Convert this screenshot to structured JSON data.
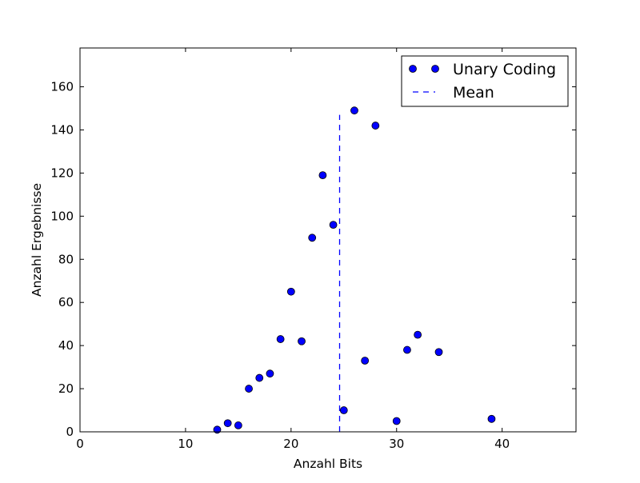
{
  "chart_data": {
    "type": "scatter",
    "xlabel": "Anzahl Bits",
    "ylabel": "Anzahl Ergebnisse",
    "xlim": [
      0,
      47
    ],
    "ylim": [
      0,
      178
    ],
    "xticks": [
      0,
      10,
      20,
      30,
      40
    ],
    "yticks": [
      0,
      20,
      40,
      60,
      80,
      100,
      120,
      140,
      160
    ],
    "grid": false,
    "legend_position": "top-right",
    "series": [
      {
        "name": "Unary Coding",
        "marker": "circle",
        "color": "#0000ff",
        "x": [
          13,
          14,
          15,
          16,
          17,
          18,
          19,
          20,
          21,
          22,
          23,
          24,
          25,
          26,
          27,
          28,
          30,
          31,
          32,
          34,
          39
        ],
        "y": [
          1,
          4,
          3,
          20,
          25,
          27,
          43,
          65,
          42,
          90,
          119,
          96,
          10,
          149,
          33,
          142,
          5,
          38,
          45,
          37,
          6
        ]
      }
    ],
    "mean_line": {
      "name": "Mean",
      "style": "dashed",
      "color": "#0000ff",
      "x": 24.6,
      "y_range": [
        0,
        147
      ]
    }
  }
}
